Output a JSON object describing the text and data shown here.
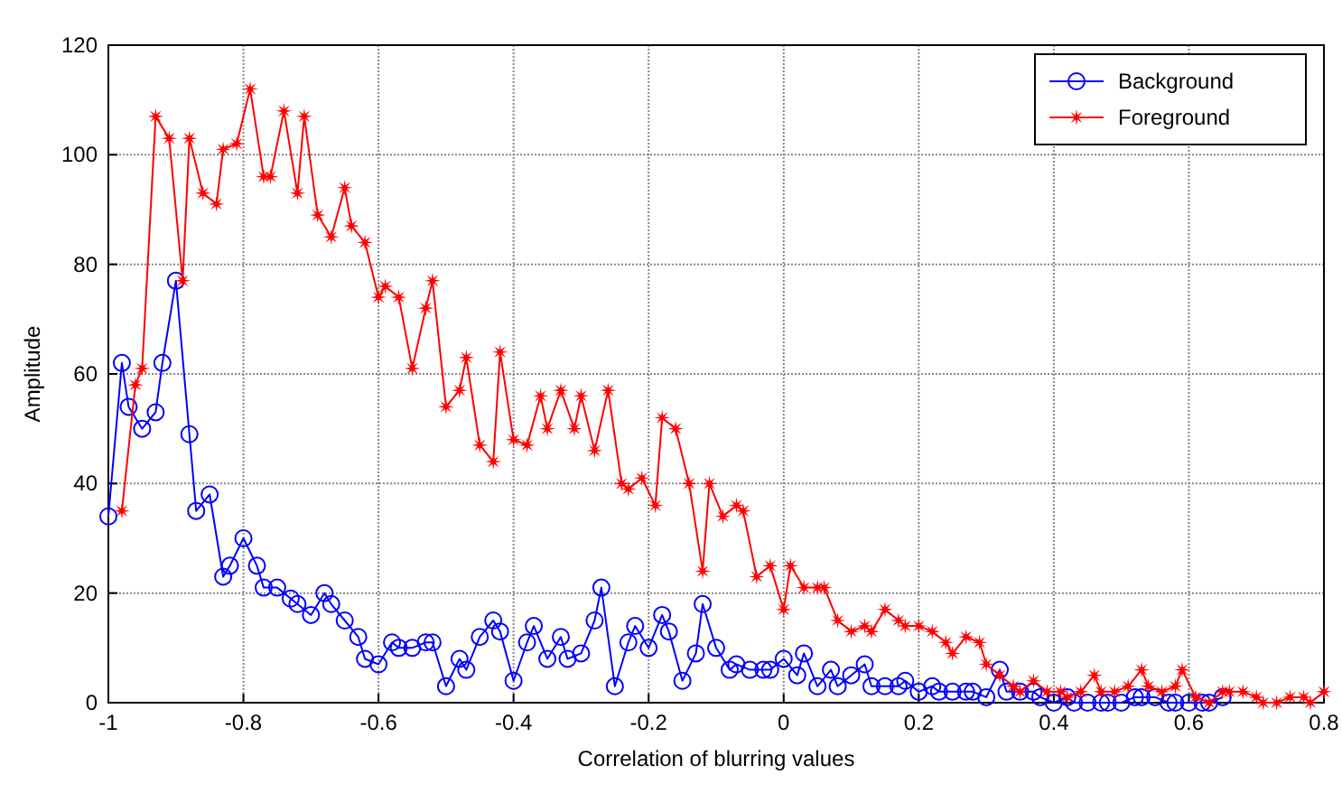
{
  "chart_data": {
    "type": "line",
    "xlabel": "Correlation of blurring values",
    "ylabel": "Amplitude",
    "xlim": [
      -1,
      0.8
    ],
    "xticks": [
      -1,
      -0.8,
      -0.6,
      -0.4,
      -0.2,
      0,
      0.2,
      0.4,
      0.6,
      0.8
    ],
    "ylim": [
      0,
      120
    ],
    "yticks": [
      0,
      20,
      40,
      60,
      80,
      100,
      120
    ],
    "grid": true,
    "legend": "top right",
    "series": [
      {
        "name": "Background",
        "color": "#0000ff",
        "marker": "circle",
        "x": [
          -1,
          -0.98,
          -0.97,
          -0.95,
          -0.93,
          -0.92,
          -0.9,
          -0.88,
          -0.87,
          -0.85,
          -0.83,
          -0.82,
          -0.8,
          -0.78,
          -0.77,
          -0.75,
          -0.73,
          -0.72,
          -0.7,
          -0.68,
          -0.67,
          -0.65,
          -0.63,
          -0.62,
          -0.6,
          -0.58,
          -0.57,
          -0.55,
          -0.53,
          -0.52,
          -0.5,
          -0.48,
          -0.47,
          -0.45,
          -0.43,
          -0.42,
          -0.4,
          -0.38,
          -0.37,
          -0.35,
          -0.33,
          -0.32,
          -0.3,
          -0.28,
          -0.27,
          -0.25,
          -0.23,
          -0.22,
          -0.2,
          -0.18,
          -0.17,
          -0.15,
          -0.13,
          -0.12,
          -0.1,
          -0.08,
          -0.07,
          -0.05,
          -0.03,
          -0.02,
          0,
          0.02,
          0.03,
          0.05,
          0.07,
          0.08,
          0.1,
          0.12,
          0.13,
          0.15,
          0.17,
          0.18,
          0.2,
          0.22,
          0.23,
          0.25,
          0.27,
          0.28,
          0.3,
          0.32,
          0.33,
          0.35,
          0.37,
          0.38,
          0.4,
          0.42,
          0.43,
          0.45,
          0.47,
          0.48,
          0.5,
          0.52,
          0.53,
          0.55,
          0.57,
          0.58,
          0.6,
          0.62,
          0.63,
          0.65
        ],
        "values": [
          34,
          62,
          54,
          50,
          53,
          62,
          77,
          49,
          35,
          38,
          23,
          25,
          30,
          25,
          21,
          21,
          19,
          18,
          16,
          20,
          18,
          15,
          12,
          8,
          7,
          11,
          10,
          10,
          11,
          11,
          3,
          8,
          6,
          12,
          15,
          13,
          4,
          11,
          14,
          8,
          12,
          8,
          9,
          15,
          21,
          3,
          11,
          14,
          10,
          16,
          13,
          4,
          9,
          18,
          10,
          6,
          7,
          6,
          6,
          6,
          8,
          5,
          9,
          3,
          6,
          3,
          5,
          7,
          3,
          3,
          3,
          4,
          2,
          3,
          2,
          2,
          2,
          2,
          1,
          6,
          2,
          2,
          2,
          1,
          0,
          1,
          0,
          0,
          0,
          0,
          0,
          1,
          1,
          1,
          0,
          0,
          0,
          0,
          0,
          1
        ]
      },
      {
        "name": "Foreground",
        "color": "#ff0000",
        "marker": "star",
        "x": [
          -0.98,
          -0.96,
          -0.95,
          -0.93,
          -0.91,
          -0.89,
          -0.88,
          -0.86,
          -0.84,
          -0.83,
          -0.81,
          -0.79,
          -0.77,
          -0.76,
          -0.74,
          -0.72,
          -0.71,
          -0.69,
          -0.67,
          -0.65,
          -0.64,
          -0.62,
          -0.6,
          -0.59,
          -0.57,
          -0.55,
          -0.53,
          -0.52,
          -0.5,
          -0.48,
          -0.47,
          -0.45,
          -0.43,
          -0.42,
          -0.4,
          -0.38,
          -0.36,
          -0.35,
          -0.33,
          -0.31,
          -0.3,
          -0.28,
          -0.26,
          -0.24,
          -0.23,
          -0.21,
          -0.19,
          -0.18,
          -0.16,
          -0.14,
          -0.12,
          -0.11,
          -0.09,
          -0.07,
          -0.06,
          -0.04,
          -0.02,
          0,
          0.01,
          0.03,
          0.05,
          0.06,
          0.08,
          0.1,
          0.12,
          0.13,
          0.15,
          0.17,
          0.18,
          0.2,
          0.22,
          0.24,
          0.25,
          0.27,
          0.29,
          0.3,
          0.32,
          0.34,
          0.35,
          0.37,
          0.39,
          0.41,
          0.42,
          0.44,
          0.46,
          0.47,
          0.49,
          0.51,
          0.53,
          0.54,
          0.56,
          0.58,
          0.59,
          0.61,
          0.63,
          0.65,
          0.66,
          0.68,
          0.7,
          0.71,
          0.73,
          0.75,
          0.77,
          0.78,
          0.8
        ],
        "values": [
          35,
          58,
          61,
          107,
          103,
          77,
          103,
          93,
          91,
          101,
          102,
          112,
          96,
          96,
          108,
          93,
          107,
          89,
          85,
          94,
          87,
          84,
          74,
          76,
          74,
          61,
          72,
          77,
          54,
          57,
          63,
          47,
          44,
          64,
          48,
          47,
          56,
          50,
          57,
          50,
          56,
          46,
          57,
          40,
          39,
          41,
          36,
          52,
          50,
          40,
          24,
          40,
          34,
          36,
          35,
          23,
          25,
          17,
          25,
          21,
          21,
          21,
          15,
          13,
          14,
          13,
          17,
          15,
          14,
          14,
          13,
          11,
          9,
          12,
          11,
          7,
          5,
          3,
          2,
          4,
          2,
          2,
          1,
          2,
          5,
          2,
          2,
          3,
          6,
          3,
          2,
          3,
          6,
          1,
          0,
          2,
          2,
          2,
          1,
          0,
          0,
          1,
          1,
          0,
          2
        ]
      }
    ]
  }
}
